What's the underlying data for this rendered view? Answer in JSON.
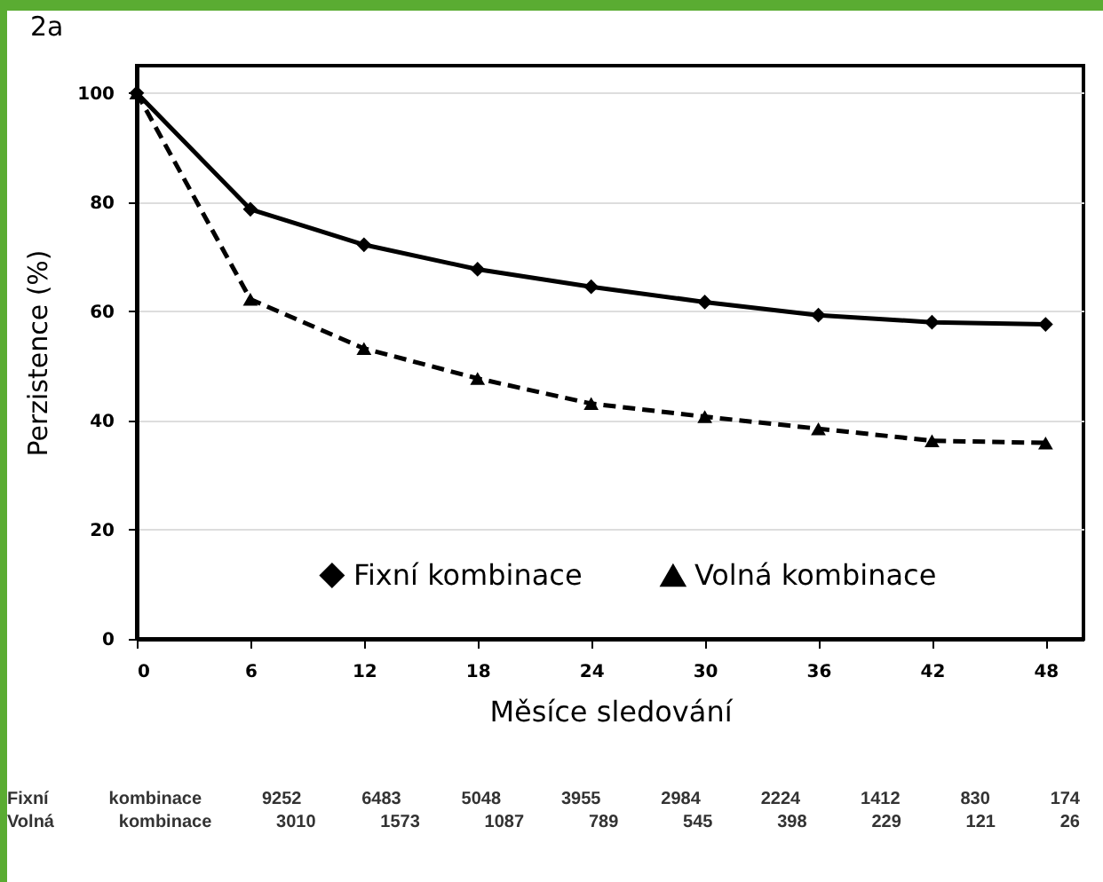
{
  "chart_data": {
    "type": "line",
    "title": "2a",
    "xlabel": "Měsíce sledování",
    "ylabel": "Perzistence (%)",
    "x": [
      0,
      6,
      12,
      18,
      24,
      30,
      36,
      42,
      48
    ],
    "series": [
      {
        "name": "Fixní kombinace",
        "color": "#000000",
        "marker": "diamond",
        "line_style": "solid",
        "values": [
          100,
          78.7,
          72.2,
          67.7,
          64.5,
          61.7,
          59.3,
          58,
          57.6
        ]
      },
      {
        "name": "Volná kombinace",
        "color": "#000000",
        "marker": "triangle",
        "line_style": "dashed",
        "values": [
          100,
          62.2,
          53.2,
          47.7,
          43.1,
          40.7,
          38.5,
          36.3,
          35.9
        ]
      }
    ],
    "xlim": [
      0,
      50
    ],
    "xticks": [
      0,
      6,
      12,
      18,
      24,
      30,
      36,
      42,
      48
    ],
    "ylim": [
      0,
      105
    ],
    "yticks": [
      0,
      20,
      40,
      60,
      80,
      100
    ],
    "grid": "y",
    "legend": "bottom",
    "annotations": [
      "Fixní kombinace 9252 6483 5048 3955 2984 2224 1412 830 174",
      "Volná kombinace 3010 1573 1087 789 545 398 229 121 26"
    ]
  }
}
